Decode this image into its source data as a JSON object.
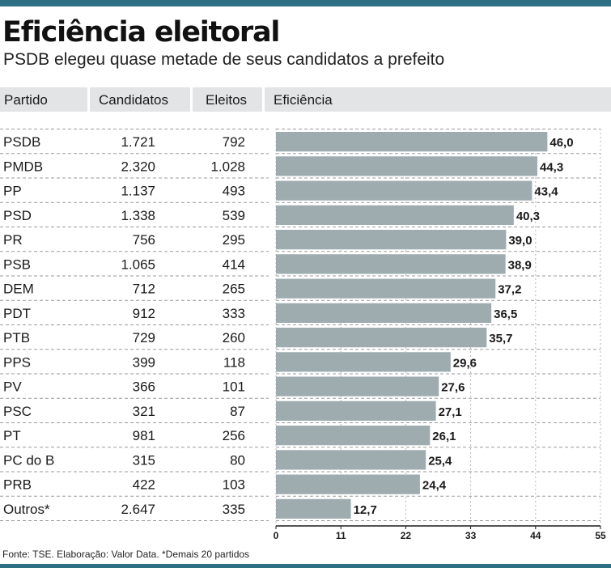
{
  "title": "Eficiência eleitoral",
  "subtitle": "PSDB elegeu quase metade de seus candidatos a prefeito",
  "headers": {
    "partido": "Partido",
    "candidatos": "Candidatos",
    "eleitos": "Eleitos",
    "eficiencia": "Eficiência"
  },
  "footer": "Fonte: TSE. Elaboração: Valor Data.  *Demais 20 partidos",
  "colors": {
    "bar": "#9eacb0",
    "accent_bar": "#2f6f86",
    "header_bg": "#e2e4e5"
  },
  "chart_data": {
    "type": "bar",
    "orientation": "horizontal",
    "xlim": [
      0,
      55
    ],
    "xticks": [
      "0",
      "11",
      "22",
      "33",
      "44",
      "55"
    ],
    "rows": [
      {
        "partido": "PSDB",
        "candidatos": "1.721",
        "eleitos": "792",
        "eficiencia": 46.0,
        "label": "46,0"
      },
      {
        "partido": "PMDB",
        "candidatos": "2.320",
        "eleitos": "1.028",
        "eficiencia": 44.3,
        "label": "44,3"
      },
      {
        "partido": "PP",
        "candidatos": "1.137",
        "eleitos": "493",
        "eficiencia": 43.4,
        "label": "43,4"
      },
      {
        "partido": "PSD",
        "candidatos": "1.338",
        "eleitos": "539",
        "eficiencia": 40.3,
        "label": "40,3"
      },
      {
        "partido": "PR",
        "candidatos": "756",
        "eleitos": "295",
        "eficiencia": 39.0,
        "label": "39,0"
      },
      {
        "partido": "PSB",
        "candidatos": "1.065",
        "eleitos": "414",
        "eficiencia": 38.9,
        "label": "38,9"
      },
      {
        "partido": "DEM",
        "candidatos": "712",
        "eleitos": "265",
        "eficiencia": 37.2,
        "label": "37,2"
      },
      {
        "partido": "PDT",
        "candidatos": "912",
        "eleitos": "333",
        "eficiencia": 36.5,
        "label": "36,5"
      },
      {
        "partido": "PTB",
        "candidatos": "729",
        "eleitos": "260",
        "eficiencia": 35.7,
        "label": "35,7"
      },
      {
        "partido": "PPS",
        "candidatos": "399",
        "eleitos": "118",
        "eficiencia": 29.6,
        "label": "29,6"
      },
      {
        "partido": "PV",
        "candidatos": "366",
        "eleitos": "101",
        "eficiencia": 27.6,
        "label": "27,6"
      },
      {
        "partido": "PSC",
        "candidatos": "321",
        "eleitos": "87",
        "eficiencia": 27.1,
        "label": "27,1"
      },
      {
        "partido": "PT",
        "candidatos": "981",
        "eleitos": "256",
        "eficiencia": 26.1,
        "label": "26,1"
      },
      {
        "partido": "PC do B",
        "candidatos": "315",
        "eleitos": "80",
        "eficiencia": 25.4,
        "label": "25,4"
      },
      {
        "partido": "PRB",
        "candidatos": "422",
        "eleitos": "103",
        "eficiencia": 24.4,
        "label": "24,4"
      },
      {
        "partido": "Outros*",
        "candidatos": "2.647",
        "eleitos": "335",
        "eficiencia": 12.7,
        "label": "12,7"
      }
    ]
  }
}
